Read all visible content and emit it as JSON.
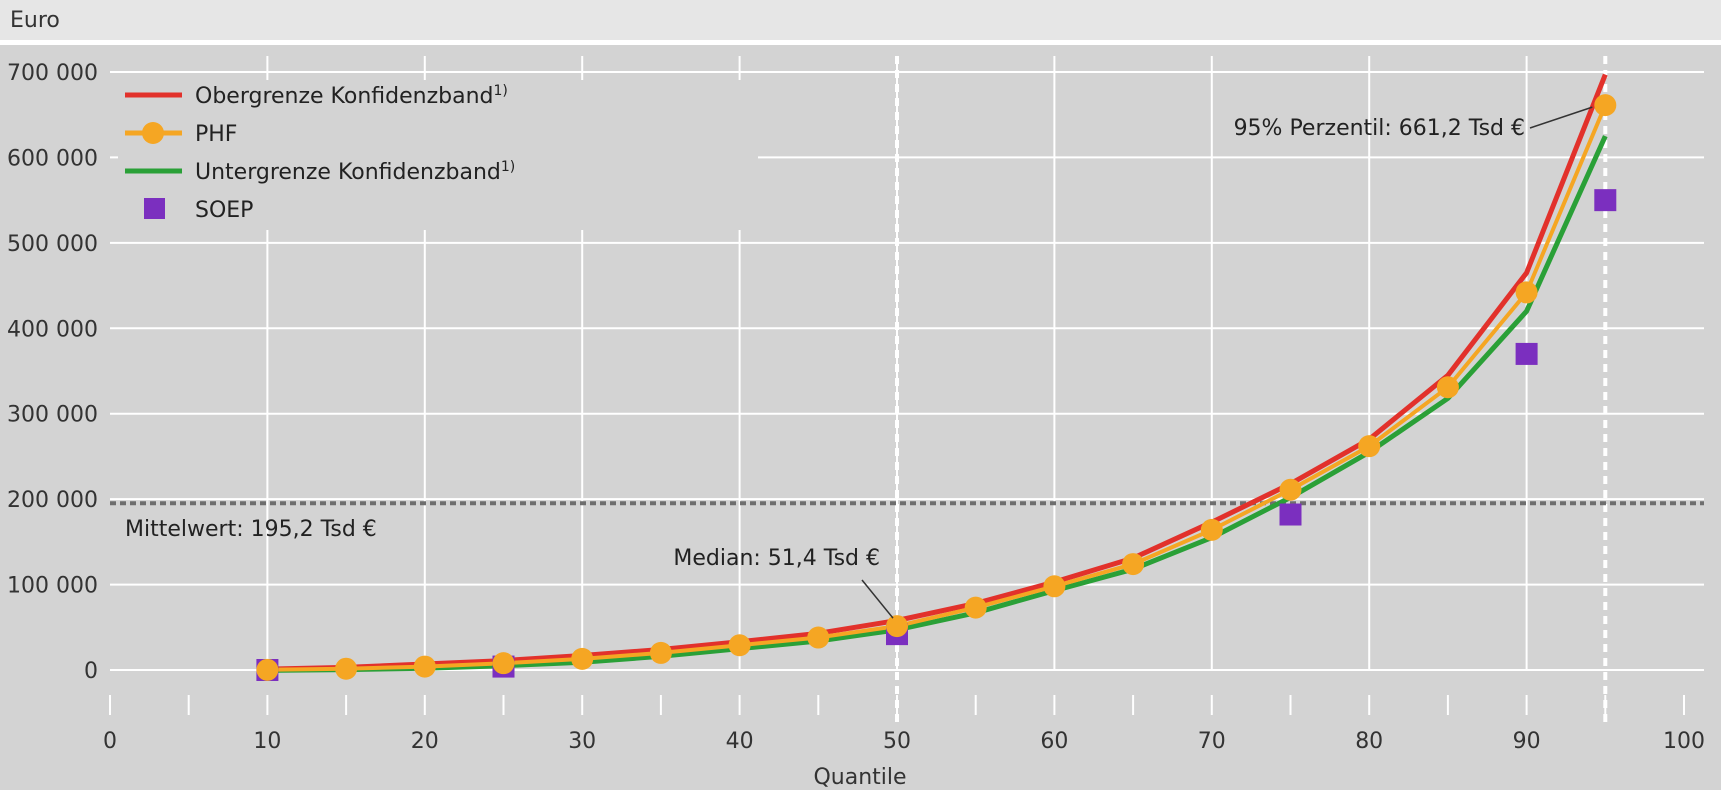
{
  "chart_data": {
    "type": "line",
    "unit_label": "Euro",
    "xlabel": "Quantile",
    "xlim": [
      0,
      100
    ],
    "ylim": [
      0,
      700000
    ],
    "x_ticks": [
      0,
      10,
      20,
      30,
      40,
      50,
      60,
      70,
      80,
      90,
      100
    ],
    "x_tick_labels": [
      "0",
      "10",
      "20",
      "30",
      "40",
      "50",
      "60",
      "70",
      "80",
      "90",
      "100"
    ],
    "y_ticks": [
      0,
      100000,
      200000,
      300000,
      400000,
      500000,
      600000,
      700000
    ],
    "y_tick_labels": [
      "0",
      "100 000",
      "200 000",
      "300 000",
      "400 000",
      "500 000",
      "600 000",
      "700 000"
    ],
    "grid": true,
    "legend_position": "top-left",
    "series": [
      {
        "name": "Obergrenze Konfidenzband",
        "name_superscript": "1)",
        "kind": "line",
        "color": "#e2312b",
        "x": [
          10,
          15,
          20,
          25,
          30,
          35,
          40,
          45,
          50,
          55,
          60,
          65,
          70,
          75,
          80,
          85,
          90,
          95
        ],
        "values": [
          1000,
          3000,
          7000,
          11000,
          17000,
          24000,
          33000,
          43000,
          58000,
          78000,
          103000,
          131000,
          173000,
          218000,
          270000,
          345000,
          465000,
          697000
        ]
      },
      {
        "name": "PHF",
        "kind": "line-marker",
        "color": "#f5a623",
        "x": [
          10,
          15,
          20,
          25,
          30,
          35,
          40,
          45,
          50,
          55,
          60,
          65,
          70,
          75,
          80,
          85,
          90,
          95
        ],
        "values": [
          200,
          1500,
          4000,
          8000,
          13000,
          20000,
          29000,
          38000,
          51400,
          73000,
          98000,
          124000,
          164000,
          211000,
          262000,
          331000,
          442000,
          661200
        ]
      },
      {
        "name": "Untergrenze Konfidenzband",
        "name_superscript": "1)",
        "kind": "line",
        "color": "#2aa037",
        "x": [
          10,
          15,
          20,
          25,
          30,
          35,
          40,
          45,
          50,
          55,
          60,
          65,
          70,
          75,
          80,
          85,
          90,
          95
        ],
        "values": [
          -500,
          500,
          2000,
          5000,
          9000,
          16000,
          25000,
          34000,
          47000,
          67000,
          93000,
          118000,
          155000,
          202000,
          255000,
          318000,
          420000,
          625000
        ]
      },
      {
        "name": "SOEP",
        "kind": "marker",
        "color": "#7b2fbf",
        "x": [
          10,
          25,
          50,
          75,
          90,
          95
        ],
        "values": [
          0,
          4000,
          42000,
          182000,
          370000,
          550000
        ]
      }
    ],
    "reference_lines": {
      "mean": {
        "value": 195200,
        "label": "Mittelwert: 195,2 Tsd €"
      },
      "median": {
        "x": 50,
        "label": "Median: 51,4 Tsd €"
      },
      "p95": {
        "x": 95,
        "label": "95% Perzentil: 661,2 Tsd €"
      }
    }
  }
}
